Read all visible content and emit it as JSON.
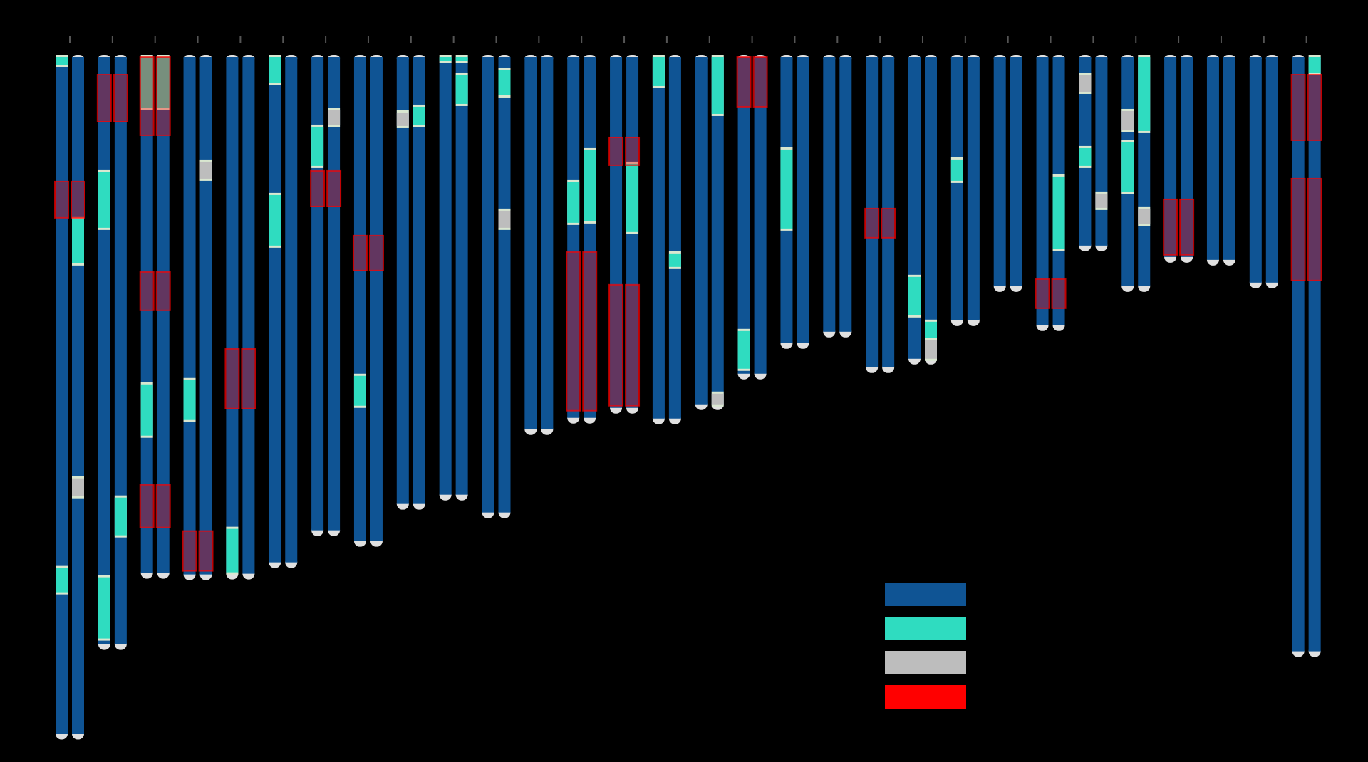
{
  "colors": {
    "background": "#000000",
    "block_a": "#0f5494",
    "block_b": "#2fdcc0",
    "block_c": "#bdbdbd",
    "highlight": "#ff0000",
    "telomere": "#e0e0e0",
    "tick": "#555555"
  },
  "legend": {
    "items": [
      {
        "color_key": "block_a"
      },
      {
        "color_key": "block_b"
      },
      {
        "color_key": "block_c"
      },
      {
        "color_key": "highlight"
      }
    ]
  },
  "chart_data": {
    "type": "karyotype",
    "length_unit": "Mb",
    "length_range": [
      0,
      960
    ],
    "pairs": [
      {
        "length": 951,
        "a": [
          [
            "b",
            0,
            11
          ],
          [
            "b",
            718,
            752
          ]
        ],
        "b": [
          [
            "b",
            228,
            290
          ],
          [
            "c",
            592,
            617
          ]
        ],
        "hl": [
          [
            175,
            226
          ]
        ]
      },
      {
        "length": 825,
        "a": [
          [
            "b",
            162,
            240
          ],
          [
            "b",
            731,
            817
          ]
        ],
        "b": [
          [
            "b",
            619,
            672
          ]
        ],
        "hl": [
          [
            25,
            91
          ]
        ]
      },
      {
        "length": 725,
        "a": [
          [
            "b",
            0,
            72
          ],
          [
            "b",
            460,
            532
          ]
        ],
        "b": [
          [
            "b",
            0,
            72
          ]
        ],
        "hl": [
          [
            0,
            110
          ],
          [
            302,
            356
          ],
          [
            601,
            661
          ]
        ]
      },
      {
        "length": 727,
        "a": [
          [
            "b",
            454,
            510
          ]
        ],
        "b": [
          [
            "c",
            147,
            171
          ]
        ],
        "hl": [
          [
            666,
            722
          ]
        ]
      },
      {
        "length": 726,
        "a": [
          [
            "b",
            663,
            724
          ]
        ],
        "b": [],
        "hl": [
          [
            410,
            494
          ]
        ]
      },
      {
        "length": 710,
        "a": [
          [
            "b",
            0,
            37
          ],
          [
            "b",
            194,
            265
          ]
        ],
        "b": [],
        "hl": []
      },
      {
        "length": 665,
        "a": [
          [
            "b",
            98,
            153
          ]
        ],
        "b": [
          [
            "c",
            75,
            96
          ]
        ],
        "hl": [
          [
            160,
            210
          ]
        ]
      },
      {
        "length": 680,
        "a": [
          [
            "b",
            448,
            490
          ]
        ],
        "b": [],
        "hl": [
          [
            251,
            300
          ]
        ]
      },
      {
        "length": 628,
        "a": [
          [
            "c",
            78,
            97
          ]
        ],
        "b": [
          [
            "b",
            70,
            96
          ]
        ],
        "hl": []
      },
      {
        "length": 615,
        "a": [
          [
            "b",
            0,
            6
          ]
        ],
        "b": [
          [
            "b",
            0,
            6
          ],
          [
            "b",
            25,
            66
          ]
        ],
        "b_extra": [],
        "hl": []
      },
      {
        "length": 640,
        "a": [],
        "b": [
          [
            "b",
            18,
            54
          ],
          [
            "c",
            216,
            240
          ]
        ],
        "hl": []
      },
      {
        "length": 523,
        "a": [],
        "b": [],
        "hl": []
      },
      {
        "length": 507,
        "a": [
          [
            "b",
            176,
            233
          ]
        ],
        "b": [
          [
            "b",
            131,
            231
          ]
        ],
        "hl": [
          [
            274,
            497
          ]
        ]
      },
      {
        "length": 493,
        "a": [],
        "b": [
          [
            "b",
            150,
            246
          ]
        ],
        "hl": [
          [
            113,
            152
          ],
          [
            320,
            490
          ]
        ]
      },
      {
        "length": 508,
        "a": [
          [
            "b",
            0,
            41
          ]
        ],
        "b": [
          [
            "b",
            276,
            295
          ]
        ],
        "hl": []
      },
      {
        "length": 488,
        "a": [],
        "b": [
          [
            "b",
            0,
            80
          ],
          [
            "c",
            473,
            488
          ]
        ],
        "hl": []
      },
      {
        "length": 445,
        "a": [
          [
            "b",
            385,
            438
          ]
        ],
        "b": [],
        "hl": [
          [
            0,
            70
          ]
        ]
      },
      {
        "length": 402,
        "a": [
          [
            "b",
            130,
            241
          ]
        ],
        "b": [],
        "hl": []
      },
      {
        "length": 386,
        "a": [],
        "b": [],
        "hl": []
      },
      {
        "length": 436,
        "a": [],
        "b": [],
        "hl": [
          [
            213,
            254
          ]
        ]
      },
      {
        "length": 424,
        "a": [
          [
            "b",
            309,
            363
          ]
        ],
        "b": [
          [
            "b",
            372,
            398
          ],
          [
            "c",
            398,
            424
          ]
        ],
        "hl": []
      },
      {
        "length": 370,
        "a": [
          [
            "b",
            144,
            174
          ]
        ],
        "b": [],
        "hl": []
      },
      {
        "length": 322,
        "a": [],
        "b": [],
        "hl": []
      },
      {
        "length": 377,
        "a": [],
        "b": [
          [
            "b",
            168,
            270
          ]
        ],
        "hl": [
          [
            312,
            353
          ]
        ]
      },
      {
        "length": 265,
        "a": [
          [
            "c",
            26,
            49
          ],
          [
            "b",
            128,
            153
          ]
        ],
        "b": [
          [
            "c",
            192,
            212
          ]
        ],
        "hl": []
      },
      {
        "length": 322,
        "a": [
          [
            "c",
            76,
            103
          ],
          [
            "b",
            120,
            190
          ]
        ],
        "b": [
          [
            "b",
            0,
            104
          ],
          [
            "c",
            213,
            235
          ]
        ],
        "hl": []
      },
      {
        "length": 281,
        "a": [],
        "b": [],
        "hl": [
          [
            200,
            278
          ]
        ]
      },
      {
        "length": 285,
        "a": [],
        "b": [],
        "hl": []
      },
      {
        "length": 317,
        "a": [],
        "b": [],
        "hl": []
      },
      {
        "length": 835,
        "a": [],
        "b": [
          [
            "b",
            0,
            23
          ]
        ],
        "hl": [
          [
            25,
            117
          ],
          [
            171,
            314
          ]
        ]
      }
    ]
  }
}
